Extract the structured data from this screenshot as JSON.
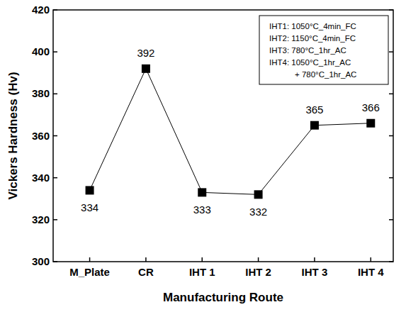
{
  "chart_data": {
    "type": "line",
    "x_label": "Manufacturing Route",
    "y_label": "Vickers Hardness (Hv)",
    "categories": [
      "M_Plate",
      "CR",
      "IHT 1",
      "IHT 2",
      "IHT 3",
      "IHT 4"
    ],
    "values": [
      334,
      392,
      333,
      332,
      365,
      366
    ],
    "color": "#000000",
    "marker": "square",
    "line_style": "solid",
    "data_labels": true,
    "ylim": [
      300,
      420
    ],
    "yticks": [
      300,
      320,
      340,
      360,
      380,
      400,
      420
    ],
    "grid": false,
    "annotations": [
      "IHT1: 1050°C_4min_FC",
      "IHT2: 1150°C_4min_FC",
      "IHT3: 780°C_1hr_AC",
      "IHT4: 1050°C_1hr_AC",
      "+ 780°C_1hr_AC"
    ]
  }
}
